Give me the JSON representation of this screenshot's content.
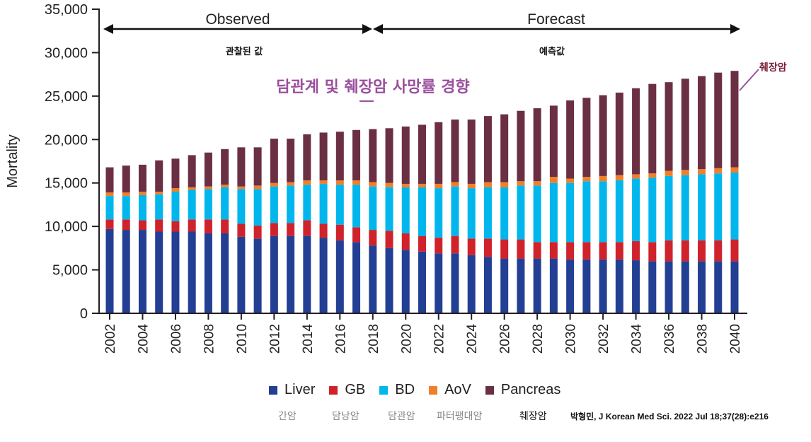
{
  "chart_data": {
    "type": "bar",
    "stacked": true,
    "title": "",
    "xlabel": "",
    "ylabel": "Mortality",
    "ylim": [
      0,
      35000
    ],
    "yticks": [
      "0",
      "5,000",
      "10,000",
      "15,000",
      "20,000",
      "25,000",
      "30,000",
      "35,000"
    ],
    "ytick_values": [
      0,
      5000,
      10000,
      15000,
      20000,
      25000,
      30000,
      35000
    ],
    "categories": [
      "2002",
      "2003",
      "2004",
      "2005",
      "2006",
      "2007",
      "2008",
      "2009",
      "2010",
      "2011",
      "2012",
      "2013",
      "2014",
      "2015",
      "2016",
      "2017",
      "2018",
      "2019",
      "2020",
      "2021",
      "2022",
      "2023",
      "2024",
      "2025",
      "2026",
      "2027",
      "2028",
      "2029",
      "2030",
      "2031",
      "2032",
      "2033",
      "2034",
      "2035",
      "2036",
      "2037",
      "2038",
      "2039",
      "2040"
    ],
    "xtick_labels": [
      "2002",
      "2004",
      "2006",
      "2008",
      "2010",
      "2012",
      "2014",
      "2016",
      "2018",
      "2020",
      "2022",
      "2024",
      "2026",
      "2028",
      "2030",
      "2032",
      "2034",
      "2036",
      "2038",
      "2040"
    ],
    "grid": false,
    "legend_position": "bottom",
    "series": [
      {
        "name": "Liver",
        "color": "#233f94",
        "values": [
          9700,
          9600,
          9600,
          9400,
          9400,
          9400,
          9200,
          9200,
          8800,
          8600,
          8900,
          8900,
          8900,
          8700,
          8400,
          8200,
          7800,
          7500,
          7300,
          7100,
          6900,
          6900,
          6700,
          6500,
          6300,
          6300,
          6300,
          6300,
          6200,
          6200,
          6200,
          6200,
          6100,
          6000,
          6000,
          6000,
          6000,
          6000,
          6000
        ]
      },
      {
        "name": "GB",
        "color": "#d0222b",
        "values": [
          1100,
          1200,
          1100,
          1400,
          1200,
          1400,
          1600,
          1600,
          1500,
          1500,
          1500,
          1500,
          1800,
          1600,
          1800,
          1700,
          1800,
          2000,
          1900,
          1800,
          1800,
          2000,
          1900,
          2100,
          2200,
          2200,
          1900,
          1900,
          2000,
          2000,
          2000,
          2000,
          2200,
          2200,
          2400,
          2400,
          2400,
          2400,
          2500
        ]
      },
      {
        "name": "BD",
        "color": "#00b6ec",
        "values": [
          2700,
          2700,
          2900,
          2900,
          3400,
          3400,
          3500,
          3700,
          4000,
          4200,
          4200,
          4300,
          4100,
          4600,
          4600,
          4900,
          5000,
          5000,
          5300,
          5600,
          5700,
          5700,
          5800,
          5900,
          6000,
          6200,
          6500,
          6800,
          6800,
          7000,
          7000,
          7100,
          7200,
          7400,
          7400,
          7500,
          7600,
          7700,
          7700
        ]
      },
      {
        "name": "AoV",
        "color": "#f07f2b",
        "values": [
          400,
          400,
          400,
          300,
          400,
          300,
          300,
          300,
          300,
          400,
          400,
          400,
          500,
          400,
          500,
          500,
          500,
          500,
          400,
          400,
          500,
          500,
          500,
          600,
          600,
          500,
          500,
          700,
          500,
          500,
          600,
          600,
          500,
          500,
          600,
          600,
          600,
          600,
          600
        ]
      },
      {
        "name": "Pancreas",
        "color": "#6b2f44",
        "values": [
          2900,
          3100,
          3100,
          3600,
          3400,
          3700,
          3900,
          4100,
          4500,
          4400,
          5100,
          5000,
          5300,
          5500,
          5600,
          5800,
          6100,
          6300,
          6600,
          6800,
          7100,
          7200,
          7400,
          7600,
          7800,
          8100,
          8400,
          8200,
          9000,
          9100,
          9300,
          9500,
          9900,
          10300,
          10200,
          10500,
          10700,
          11000,
          11100
        ]
      }
    ],
    "annotations": {
      "observed": "Observed",
      "forecast": "Forecast",
      "observed_kr": "관찰된 값",
      "forecast_kr": "예측값",
      "overlay_title": "담관계 및 췌장암 사망률 경향",
      "callout": "췌장암"
    }
  },
  "legend_kr": [
    "간암",
    "담낭암",
    "담관암",
    "파터팽대암",
    "췌장암"
  ],
  "citation": "박형민,  J Korean Med Sci. 2022 Jul 18;37(28):e216"
}
